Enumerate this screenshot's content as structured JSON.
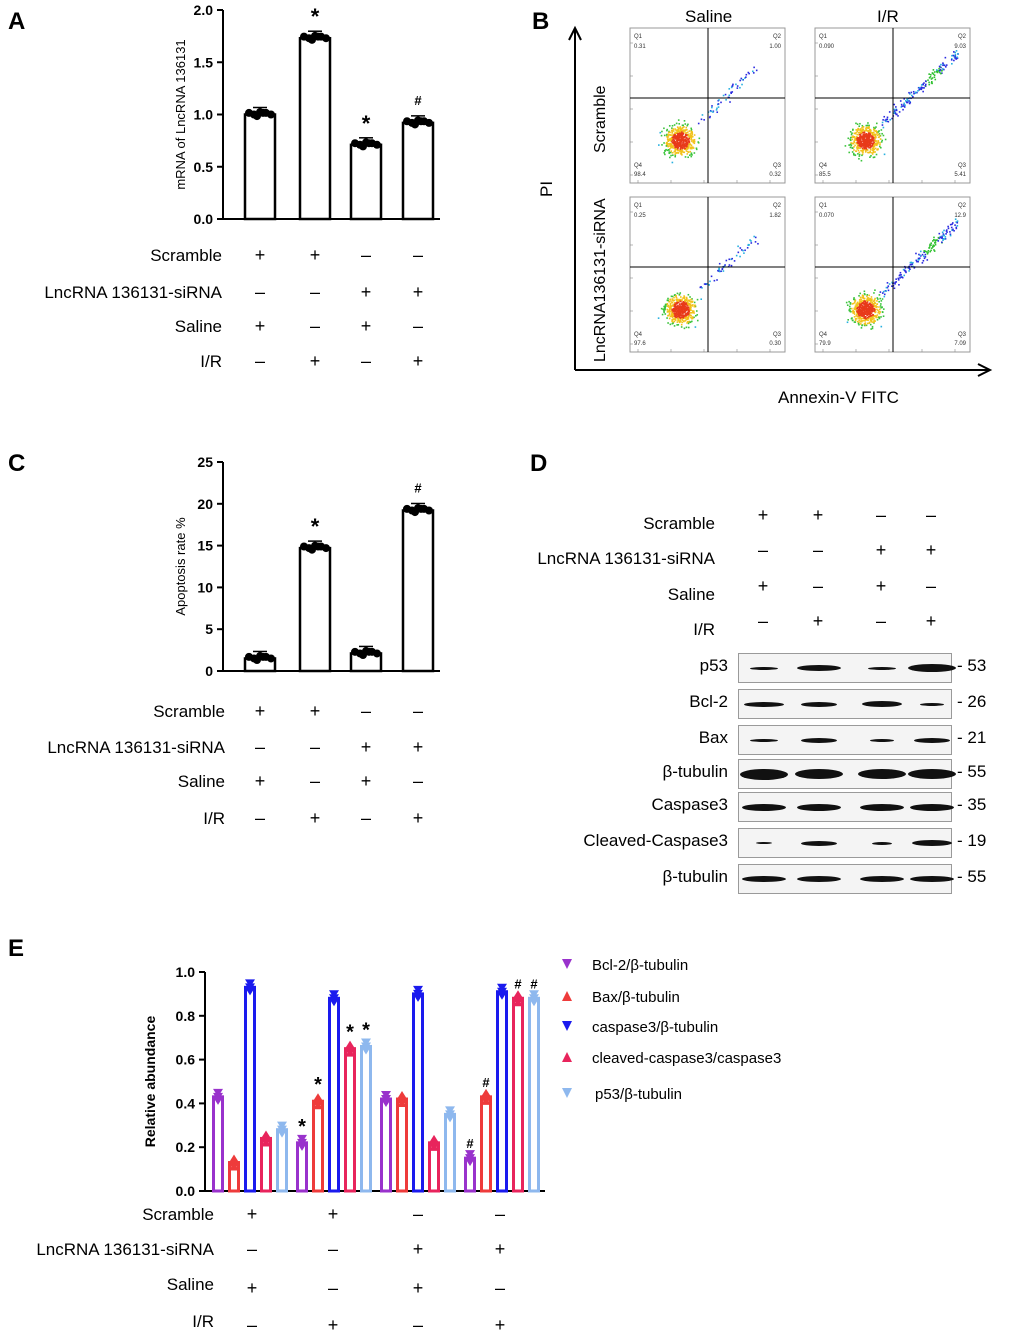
{
  "panels": {
    "a": "A",
    "b": "B",
    "c": "C",
    "d": "D",
    "e": "E"
  },
  "conditions": {
    "labels": [
      "Scramble",
      "LncRNA 136131-siRNA",
      "Saline",
      "I/R"
    ],
    "rows": [
      [
        "+",
        "+",
        "–",
        "–"
      ],
      [
        "–",
        "–",
        "+",
        "+"
      ],
      [
        "+",
        "–",
        "+",
        "–"
      ],
      [
        "–",
        "+",
        "–",
        "+"
      ]
    ]
  },
  "panel_a": {
    "chart_data": {
      "type": "bar",
      "ylabel": "mRNA of LncRNA 136131",
      "ylim": [
        0,
        2.0
      ],
      "yticks": [
        "0.0",
        "0.5",
        "1.0",
        "1.5",
        "2.0"
      ],
      "categories": [
        "Scramble+Saline",
        "Scramble+I/R",
        "siRNA+Saline",
        "siRNA+I/R"
      ],
      "values": [
        1.0,
        1.73,
        0.71,
        0.92
      ],
      "annotations": [
        "",
        "*",
        "*",
        "#"
      ]
    }
  },
  "panel_b": {
    "col_titles": [
      "Saline",
      "I/R"
    ],
    "row_titles": [
      "Scramble",
      "LncRNA136131-siRNA"
    ],
    "y_axis": "PI",
    "x_axis": "Annexin-V FITC",
    "quadrant_names": [
      "Q1",
      "Q2",
      "Q4",
      "Q3"
    ],
    "plots": [
      {
        "q1": "0.31",
        "q2": "1.00",
        "q4": "98.4",
        "q3": "0.32"
      },
      {
        "q1": "0.090",
        "q2": "9.03",
        "q4": "85.5",
        "q3": "5.41"
      },
      {
        "q1": "0.25",
        "q2": "1.82",
        "q4": "97.6",
        "q3": "0.30"
      },
      {
        "q1": "0.070",
        "q2": "12.9",
        "q4": "79.9",
        "q3": "7.09"
      }
    ]
  },
  "panel_c": {
    "chart_data": {
      "type": "bar",
      "ylabel": "Apoptosis rate %",
      "ylim": [
        0,
        25
      ],
      "yticks": [
        "0",
        "5",
        "10",
        "15",
        "20",
        "25"
      ],
      "categories": [
        "Scramble+Saline",
        "Scramble+I/R",
        "siRNA+Saline",
        "siRNA+I/R"
      ],
      "values": [
        1.5,
        14.7,
        2.1,
        19.2
      ],
      "annotations": [
        "",
        "*",
        "",
        "#"
      ]
    }
  },
  "panel_d": {
    "rows": [
      {
        "name": "p53",
        "mw": "- 53"
      },
      {
        "name": "Bcl-2",
        "mw": "- 26"
      },
      {
        "name": "Bax",
        "mw": "- 21"
      },
      {
        "name": "β-tubulin",
        "mw": "- 55"
      },
      {
        "name": "Caspase3",
        "mw": "- 35"
      },
      {
        "name": "Cleaved-Caspase3",
        "mw": "- 19"
      },
      {
        "name": "β-tubulin",
        "mw": "- 55"
      }
    ]
  },
  "panel_e": {
    "chart_data": {
      "type": "bar",
      "ylabel": "Relative abundance",
      "ylim": [
        0,
        1.0
      ],
      "yticks": [
        "0.0",
        "0.2",
        "0.4",
        "0.6",
        "0.8",
        "1.0"
      ],
      "categories": [
        "Scramble+Saline",
        "Scramble+I/R",
        "siRNA+Saline",
        "siRNA+I/R"
      ],
      "series": [
        {
          "name": "Bcl-2/β-tubulin",
          "color": "#9932cc",
          "values": [
            0.43,
            0.22,
            0.42,
            0.15
          ],
          "annotations": [
            "",
            "*",
            "",
            "#"
          ]
        },
        {
          "name": "Bax/β-tubulin",
          "color": "#ee3b3b",
          "values": [
            0.13,
            0.41,
            0.42,
            0.43
          ],
          "annotations": [
            "",
            "*",
            "",
            "#"
          ]
        },
        {
          "name": "caspase3/β-tubulin",
          "color": "#1a1aee",
          "values": [
            0.93,
            0.88,
            0.9,
            0.91
          ],
          "annotations": [
            "",
            "",
            "",
            ""
          ]
        },
        {
          "name": "cleaved-caspase3/caspase3",
          "color": "#e8245c",
          "values": [
            0.24,
            0.65,
            0.22,
            0.88
          ],
          "annotations": [
            "",
            "*",
            "",
            "#"
          ]
        },
        {
          "name": "p53/β-tubulin",
          "color": "#8eb8ee",
          "values": [
            0.28,
            0.66,
            0.35,
            0.88
          ],
          "annotations": [
            "",
            "*",
            "",
            "#"
          ]
        }
      ]
    }
  }
}
